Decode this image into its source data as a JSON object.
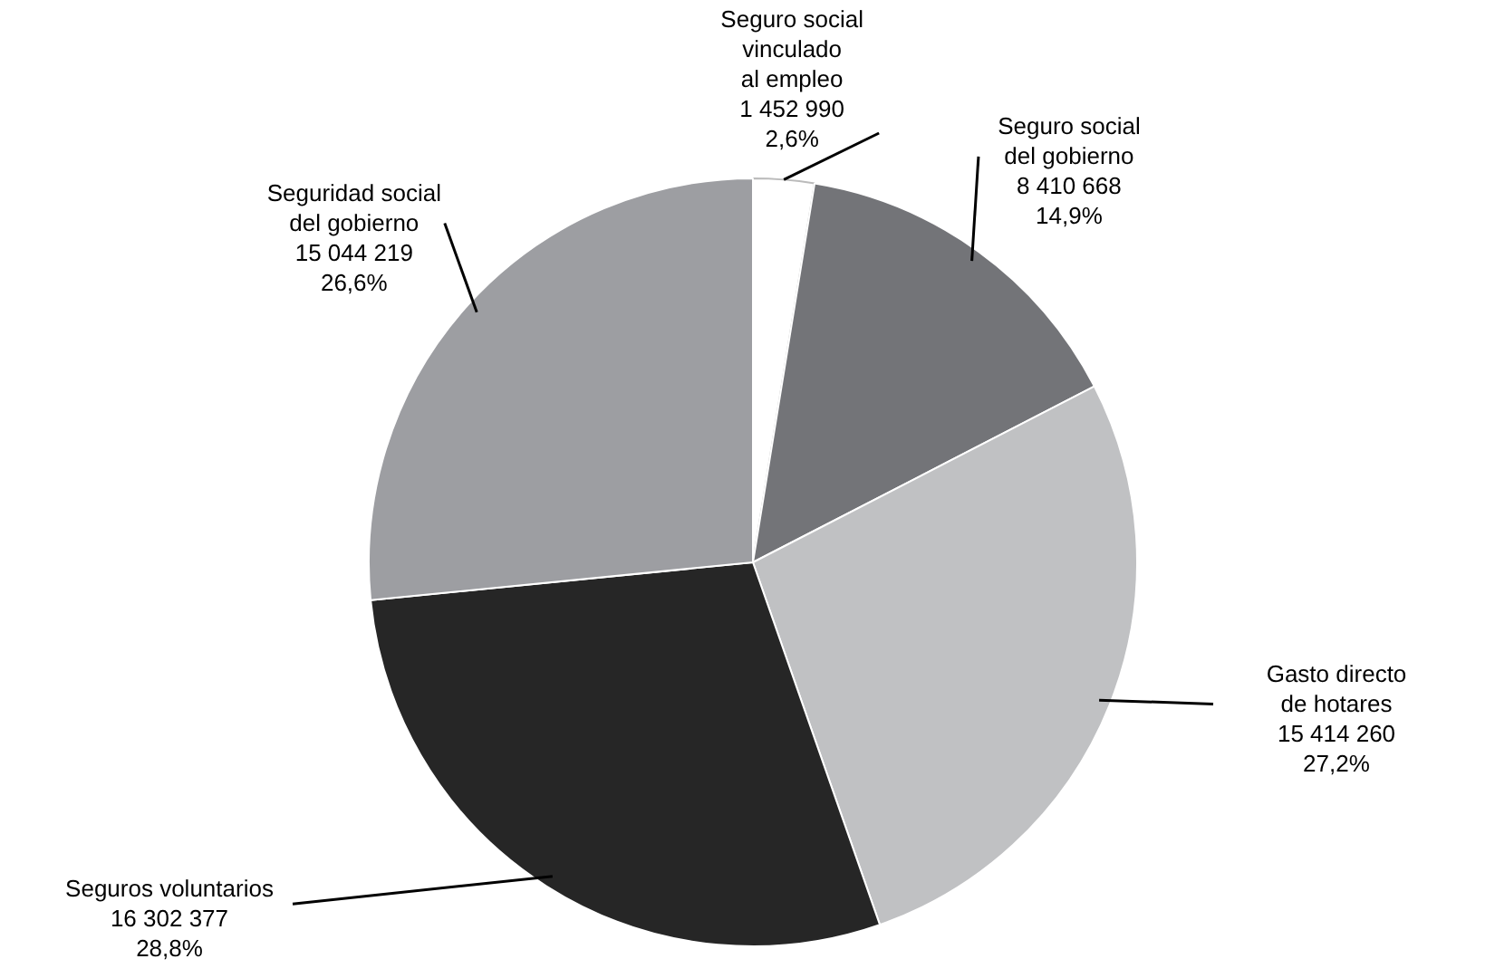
{
  "chart_data": {
    "type": "pie",
    "categories": [
      "Seguro social vinculado al empleo",
      "Seguro social del gobierno",
      "Gasto directo de hotares",
      "Seguros voluntarios",
      "Seguridad social del gobierno"
    ],
    "values": [
      1452990,
      8410668,
      15414260,
      16302377,
      15044219
    ],
    "value_labels": [
      "1 452 990\n2,6%",
      "8 410 668\n14,9%",
      "15 414 260\n27,2%",
      "16 302 377\n28,8%",
      "15 044 219\n26,6%"
    ],
    "colors": [
      "#ffffff",
      "#737478",
      "#c0c1c3",
      "#262626",
      "#9d9ea2"
    ]
  }
}
